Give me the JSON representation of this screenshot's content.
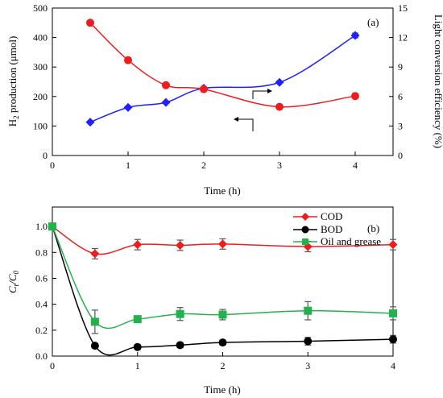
{
  "chart_data": [
    {
      "type": "line",
      "panel_label": "(a)",
      "xlabel": "Time (h)",
      "ylabel_left": "H2 production (μmol)",
      "ylabel_right": "Light conversion efficiency (%)",
      "x_ticks": [
        "0",
        "1",
        "2",
        "3",
        "4"
      ],
      "y_left_ticks": [
        "0",
        "100",
        "200",
        "300",
        "400",
        "500"
      ],
      "y_right_ticks": [
        "0",
        "3",
        "6",
        "9",
        "12",
        "15"
      ],
      "xlim": [
        0,
        4.5
      ],
      "ylim_left": [
        0,
        500
      ],
      "ylim_right": [
        0,
        15
      ],
      "grid": false,
      "series": [
        {
          "axis": "left",
          "color": "#1f1fff",
          "marker": "diamond",
          "x": [
            0.5,
            1,
            1.5,
            2,
            3,
            4
          ],
          "y": [
            113,
            163,
            180,
            228,
            248,
            407
          ],
          "error": [
            0,
            0,
            0,
            0,
            0,
            8
          ]
        },
        {
          "axis": "right",
          "color": "#ee1c1c",
          "marker": "circle",
          "x": [
            0.5,
            1,
            1.5,
            2,
            3,
            4
          ],
          "y": [
            13.5,
            9.7,
            7.15,
            6.75,
            4.95,
            6.05
          ],
          "error": [
            0,
            0,
            0,
            0,
            0,
            0
          ]
        }
      ]
    },
    {
      "type": "line",
      "panel_label": "(b)",
      "xlabel": "Time (h)",
      "ylabel": "Ct/C0",
      "ylabel_main": "C",
      "ylabel_sub1": "t",
      "ylabel_slash": "/C",
      "ylabel_sub2": "0",
      "x_ticks": [
        "0",
        "1",
        "2",
        "3",
        "4"
      ],
      "y_ticks": [
        "0.0",
        "0.2",
        "0.4",
        "0.6",
        "0.8",
        "1.0"
      ],
      "xlim": [
        0,
        4
      ],
      "ylim": [
        0,
        1.15
      ],
      "grid": false,
      "legend_position": "top-right",
      "series": [
        {
          "name": "COD",
          "color": "#ee1c1c",
          "marker": "diamond",
          "x": [
            0,
            0.5,
            1,
            1.5,
            2,
            3,
            4
          ],
          "y": [
            1.0,
            0.79,
            0.86,
            0.855,
            0.865,
            0.845,
            0.86
          ],
          "error": [
            0,
            0.04,
            0.04,
            0.04,
            0.04,
            0.04,
            0.04
          ]
        },
        {
          "name": "BOD",
          "color": "#000000",
          "marker": "circle",
          "x": [
            0,
            0.5,
            1,
            1.5,
            2,
            3,
            4
          ],
          "y": [
            1.0,
            0.08,
            0.07,
            0.085,
            0.105,
            0.115,
            0.13
          ],
          "error": [
            0,
            0.015,
            0.02,
            0.02,
            0.02,
            0.03,
            0.03
          ]
        },
        {
          "name": "Oil and grease",
          "color": "#22b24c",
          "marker": "square",
          "x": [
            0,
            0.5,
            1,
            1.5,
            2,
            3,
            4
          ],
          "y": [
            1.0,
            0.265,
            0.285,
            0.325,
            0.32,
            0.35,
            0.33
          ],
          "error": [
            0,
            0.09,
            0.02,
            0.05,
            0.04,
            0.07,
            0.05
          ]
        }
      ]
    }
  ]
}
